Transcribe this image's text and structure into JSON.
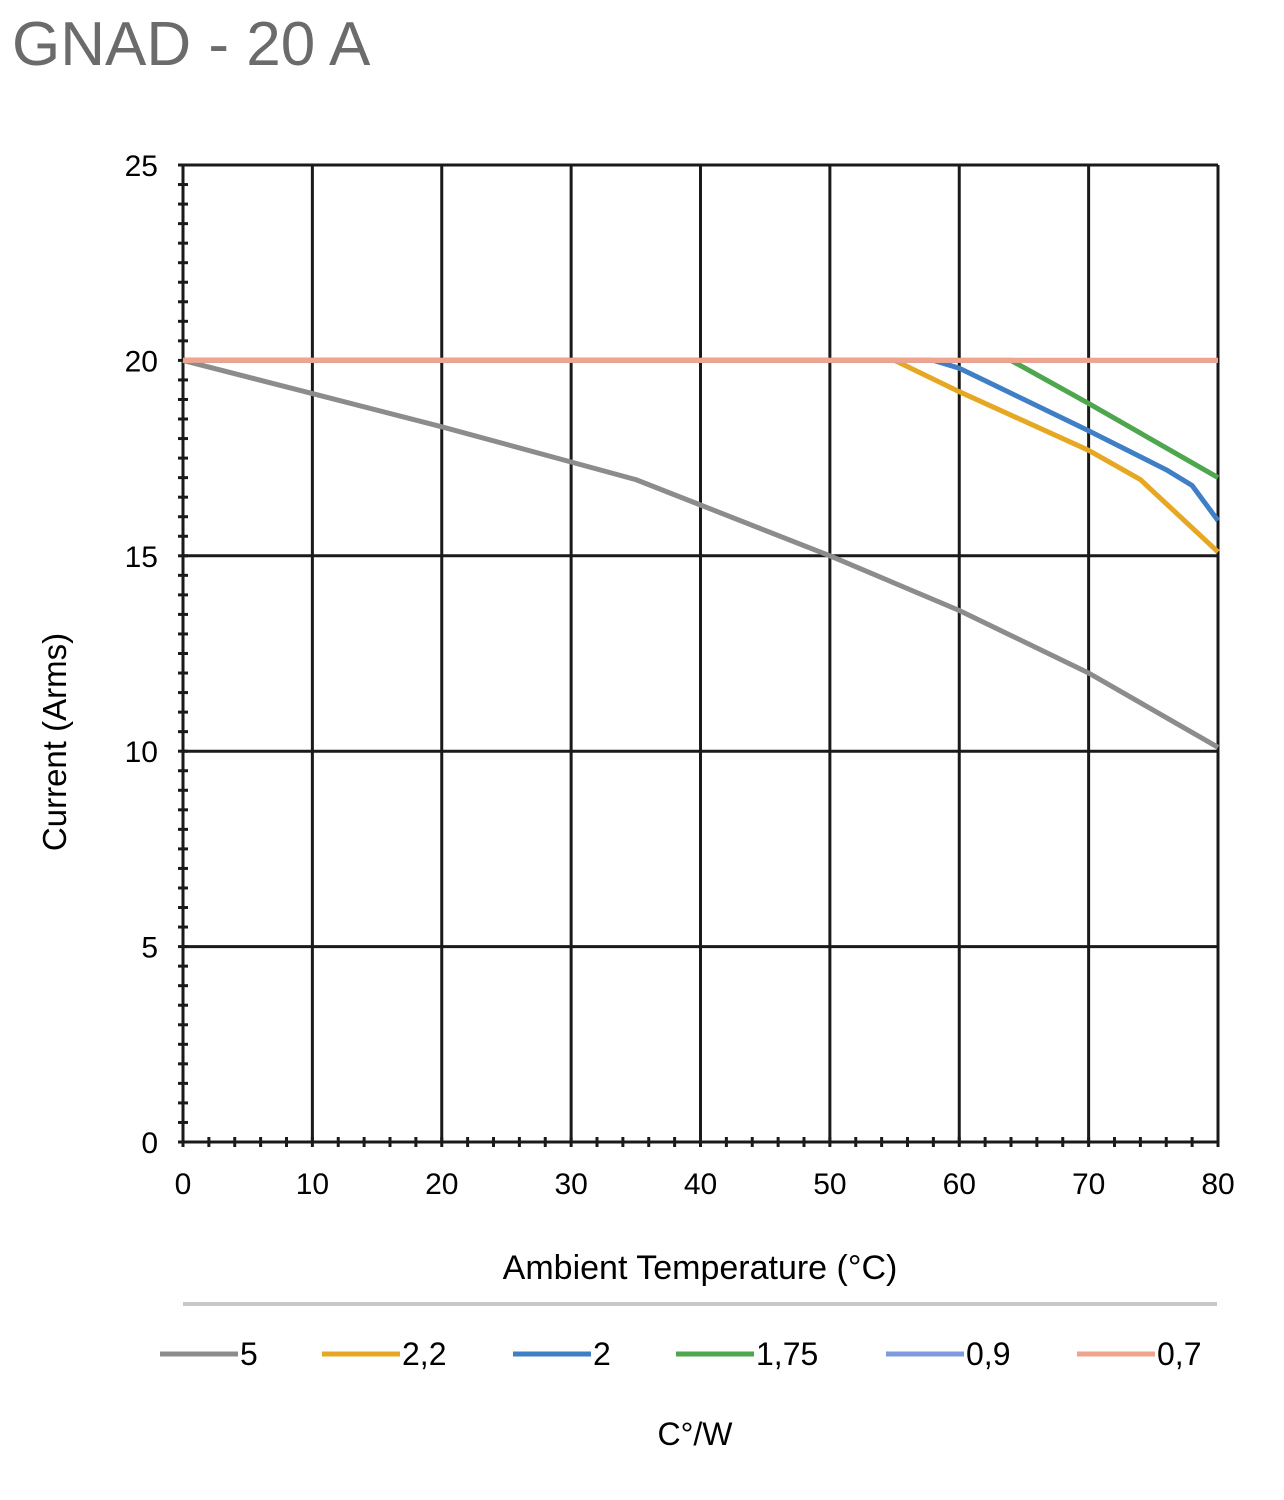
{
  "title": "GNAD - 20 A",
  "legend_title": "C°/W",
  "chart_data": {
    "type": "line",
    "title": "GNAD - 20 A",
    "xlabel": "Ambient Temperature (°C)",
    "ylabel": "Current (Arms)",
    "xlim": [
      0,
      80
    ],
    "ylim": [
      0,
      25
    ],
    "x_ticks": [
      0,
      10,
      20,
      30,
      40,
      50,
      60,
      70,
      80
    ],
    "y_ticks": [
      0,
      5,
      10,
      15,
      20,
      25
    ],
    "grid": true,
    "legend_position": "bottom",
    "legend_title": "C°/W",
    "series": [
      {
        "name": "5",
        "color": "#8c8c8c",
        "points": [
          [
            0,
            20
          ],
          [
            10,
            19.15
          ],
          [
            20,
            18.3
          ],
          [
            30,
            17.4
          ],
          [
            35,
            16.95
          ],
          [
            40,
            16.3
          ],
          [
            50,
            15.0
          ],
          [
            60,
            13.6
          ],
          [
            70,
            12.0
          ],
          [
            80,
            10.1
          ]
        ]
      },
      {
        "name": "2,2",
        "color": "#e6a722",
        "points": [
          [
            0,
            20
          ],
          [
            55,
            20
          ],
          [
            60,
            19.2
          ],
          [
            70,
            17.7
          ],
          [
            74,
            16.95
          ],
          [
            80,
            15.1
          ]
        ]
      },
      {
        "name": "2",
        "color": "#3f7fc6",
        "points": [
          [
            0,
            20
          ],
          [
            58,
            20
          ],
          [
            60,
            19.8
          ],
          [
            70,
            18.2
          ],
          [
            76,
            17.2
          ],
          [
            78,
            16.8
          ],
          [
            80,
            15.9
          ]
        ]
      },
      {
        "name": "1,75",
        "color": "#4ea64e",
        "points": [
          [
            0,
            20
          ],
          [
            64,
            20
          ],
          [
            70,
            18.9
          ],
          [
            80,
            17.0
          ]
        ]
      },
      {
        "name": "0,9",
        "color": "#7d9bde",
        "points": [
          [
            0,
            20
          ],
          [
            80,
            20
          ]
        ]
      },
      {
        "name": "0,7",
        "color": "#f0a48e",
        "points": [
          [
            0,
            20
          ],
          [
            80,
            20
          ]
        ]
      }
    ]
  }
}
